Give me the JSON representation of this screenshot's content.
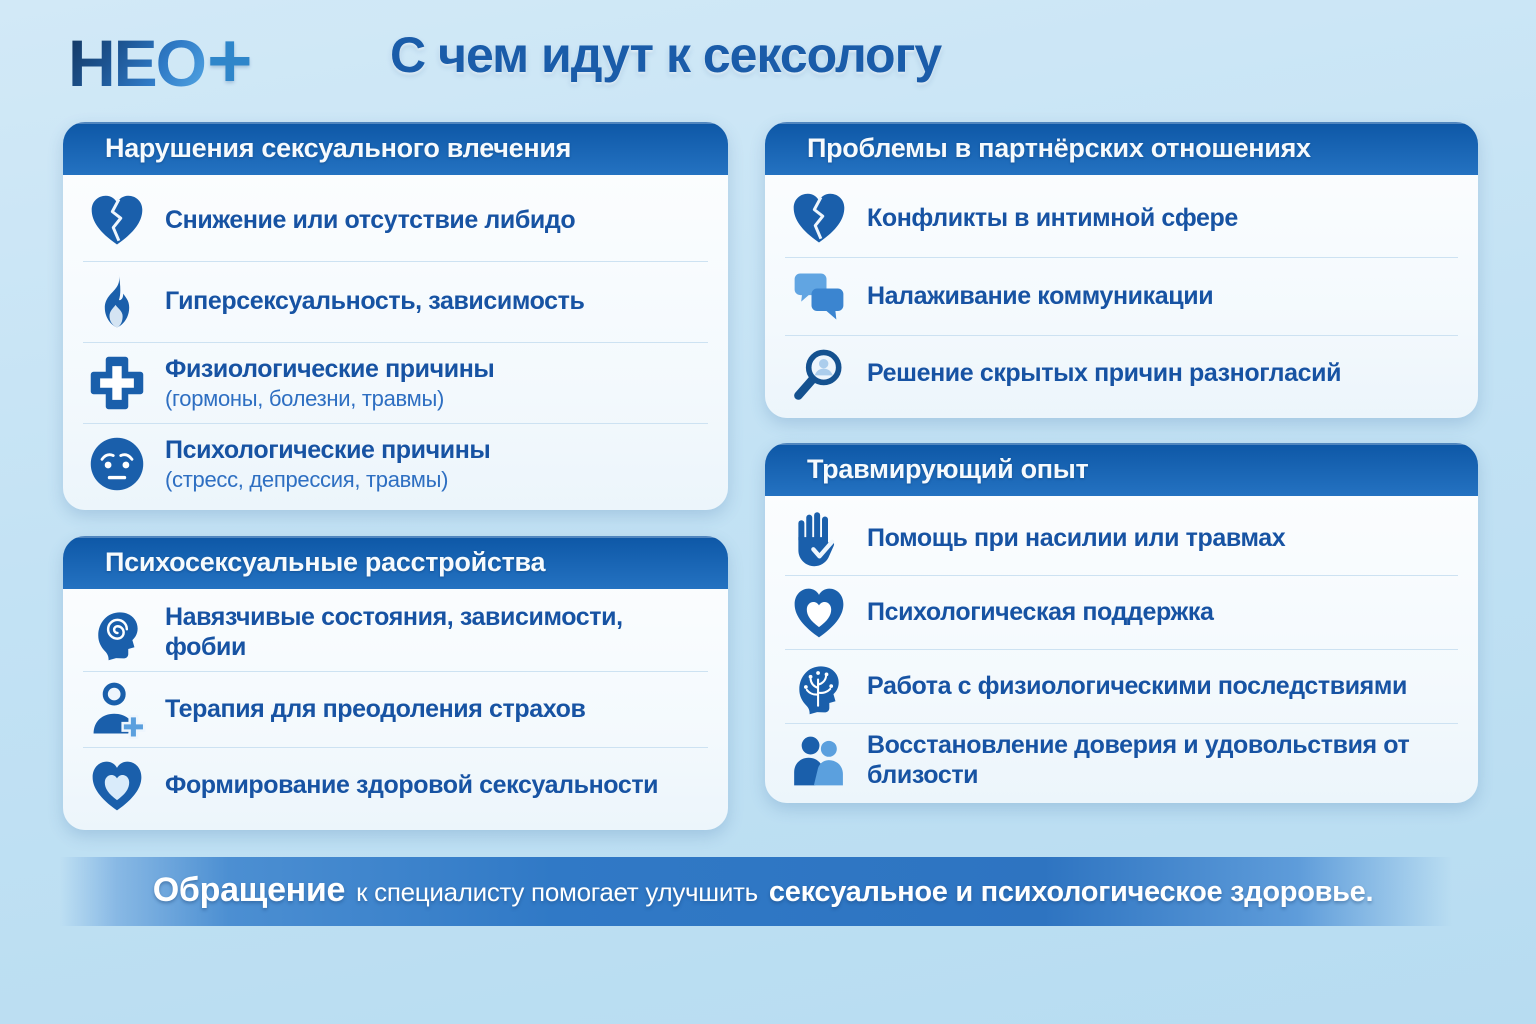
{
  "logo": {
    "text": "НЕО",
    "plus": "+"
  },
  "title": "С чем идут к сексологу",
  "cards": [
    {
      "title": "Нарушения сексуального влечения",
      "items": [
        {
          "icon": "broken-heart-icon",
          "text": "Снижение или отсутствие либидо"
        },
        {
          "icon": "flame-icon",
          "text": "Гиперсексуальность, зависимость"
        },
        {
          "icon": "medical-cross-icon",
          "text": "Физиологические причины",
          "subtext": "(гормоны, болезни, травмы)"
        },
        {
          "icon": "worried-face-icon",
          "text": "Психологические причины",
          "subtext": "(стресс, депрессия, травмы)"
        }
      ]
    },
    {
      "title": "Психосексуальные расстройства",
      "items": [
        {
          "icon": "hypnosis-head-icon",
          "text": "Навязчивые состояния, зависимости, фобии"
        },
        {
          "icon": "therapist-person-icon",
          "text": "Терапия для преодоления страхов"
        },
        {
          "icon": "healthy-heart-icon",
          "text": "Формирование здоровой сексуальности"
        }
      ]
    },
    {
      "title": "Проблемы в партнёрских отношениях",
      "items": [
        {
          "icon": "broken-heart-icon",
          "text": "Конфликты в интимной сфере"
        },
        {
          "icon": "chat-bubbles-icon",
          "text": "Налаживание коммуникации"
        },
        {
          "icon": "magnifier-person-icon",
          "text": "Решение скрытых причин разногласий"
        }
      ]
    },
    {
      "title": "Травмирующий опыт",
      "items": [
        {
          "icon": "stop-hand-icon",
          "text": "Помощь при насилии или травмах"
        },
        {
          "icon": "support-heart-icon",
          "text": "Психологическая поддержка"
        },
        {
          "icon": "mind-tree-icon",
          "text": "Работа с физиологическими последствиями"
        },
        {
          "icon": "couple-embrace-icon",
          "text": "Восстановление доверия и удовольствия от близости"
        }
      ]
    }
  ],
  "footer": {
    "lead": "Обращение",
    "middle": "к специалисту помогает улучшить",
    "emphasis": "сексуальное и психологическое здоровье."
  },
  "colors": {
    "accent_blue": "#1a5fab",
    "header_gradient_top": "#0d57a6",
    "header_gradient_bottom": "#2472c1",
    "background_light_blue": "#c3e2f4",
    "banner_blue": "#3079c6",
    "item_text_blue": "#1753a3",
    "light_icon_blue": "#5ba0de"
  }
}
